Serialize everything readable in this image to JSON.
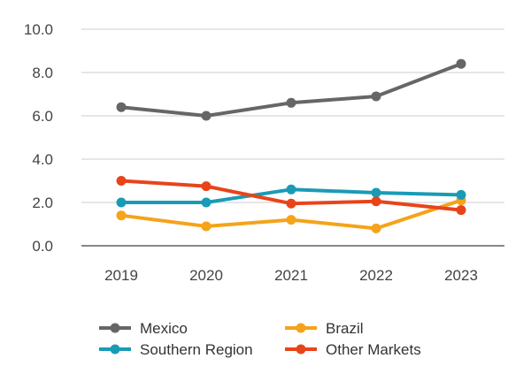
{
  "chart_data": {
    "type": "line",
    "title": "",
    "xlabel": "",
    "ylabel": "",
    "categories": [
      "2019",
      "2020",
      "2021",
      "2022",
      "2023"
    ],
    "ylim": [
      0,
      10
    ],
    "y_ticks": [
      "0.0",
      "2.0",
      "4.0",
      "6.0",
      "8.0",
      "10.0"
    ],
    "grid": true,
    "legend_position": "bottom",
    "series": [
      {
        "name": "Mexico",
        "color": "#666666",
        "values": [
          6.4,
          6.0,
          6.6,
          6.9,
          8.4
        ]
      },
      {
        "name": "Brazil",
        "color": "#F5A31A",
        "values": [
          1.4,
          0.9,
          1.2,
          0.8,
          2.1
        ]
      },
      {
        "name": "Southern Region",
        "color": "#1A9BB5",
        "values": [
          2.0,
          2.0,
          2.6,
          2.45,
          2.35
        ]
      },
      {
        "name": "Other Markets",
        "color": "#E8441A",
        "values": [
          3.0,
          2.75,
          1.95,
          2.05,
          1.65
        ]
      }
    ]
  }
}
